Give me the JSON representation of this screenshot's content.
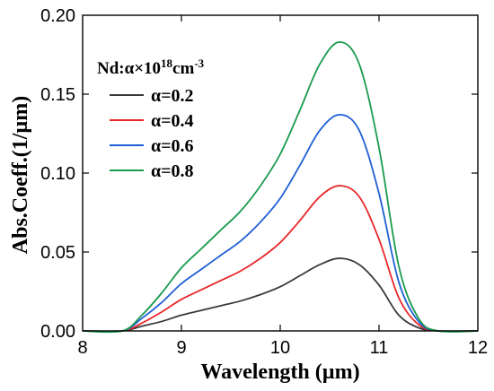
{
  "chart_data": {
    "type": "line",
    "xlabel": "Wavelength (µm)",
    "ylabel": "Abs.Coeff.(1/µm)",
    "xlim": [
      8,
      12
    ],
    "ylim": [
      0,
      0.2
    ],
    "x_ticks": [
      "8",
      "9",
      "10",
      "11",
      "12"
    ],
    "y_ticks": [
      "0.00",
      "0.05",
      "0.10",
      "0.15",
      "0.20"
    ],
    "legend": {
      "title_main": "Nd:α×10",
      "title_sup1": "18",
      "title_mid": "cm",
      "title_sup2": "-3",
      "placement": "upper-left"
    },
    "x": [
      8.4,
      8.6,
      8.8,
      9.0,
      9.2,
      9.4,
      9.6,
      9.8,
      10.0,
      10.2,
      10.4,
      10.6,
      10.8,
      11.0,
      11.2,
      11.4,
      11.6
    ],
    "series": [
      {
        "name": "α=0.2",
        "color": "#3a3a3a",
        "values": [
          0.0,
          0.003,
          0.006,
          0.01,
          0.013,
          0.016,
          0.019,
          0.023,
          0.028,
          0.035,
          0.042,
          0.046,
          0.042,
          0.029,
          0.01,
          0.002,
          0.0
        ]
      },
      {
        "name": "α=0.4",
        "color": "#e8272a",
        "values": [
          0.0,
          0.005,
          0.012,
          0.02,
          0.026,
          0.032,
          0.038,
          0.046,
          0.056,
          0.07,
          0.085,
          0.092,
          0.085,
          0.058,
          0.021,
          0.004,
          0.0
        ]
      },
      {
        "name": "α=0.6",
        "color": "#1f5fd6",
        "values": [
          0.0,
          0.008,
          0.018,
          0.03,
          0.039,
          0.048,
          0.057,
          0.069,
          0.084,
          0.105,
          0.127,
          0.137,
          0.127,
          0.087,
          0.031,
          0.006,
          0.0
        ]
      },
      {
        "name": "α=0.8",
        "color": "#1a9a4e",
        "values": [
          0.0,
          0.01,
          0.024,
          0.04,
          0.052,
          0.064,
          0.076,
          0.092,
          0.112,
          0.14,
          0.169,
          0.183,
          0.169,
          0.116,
          0.041,
          0.008,
          0.0
        ]
      }
    ]
  }
}
